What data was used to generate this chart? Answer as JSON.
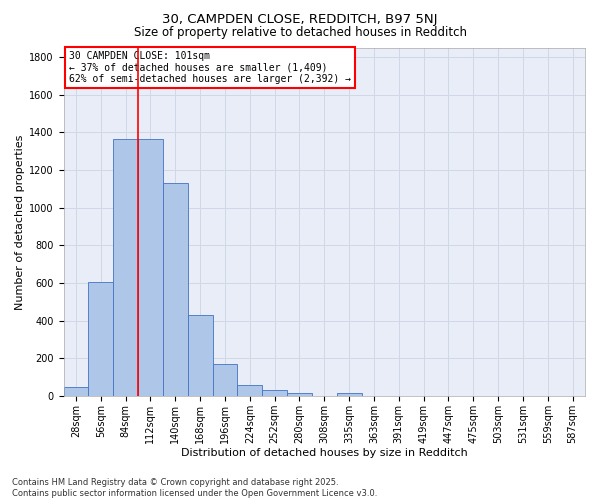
{
  "title_line1": "30, CAMPDEN CLOSE, REDDITCH, B97 5NJ",
  "title_line2": "Size of property relative to detached houses in Redditch",
  "xlabel": "Distribution of detached houses by size in Redditch",
  "ylabel": "Number of detached properties",
  "categories": [
    "28sqm",
    "56sqm",
    "84sqm",
    "112sqm",
    "140sqm",
    "168sqm",
    "196sqm",
    "224sqm",
    "252sqm",
    "280sqm",
    "308sqm",
    "335sqm",
    "363sqm",
    "391sqm",
    "419sqm",
    "447sqm",
    "475sqm",
    "503sqm",
    "531sqm",
    "559sqm",
    "587sqm"
  ],
  "values": [
    50,
    605,
    1365,
    1365,
    1130,
    430,
    170,
    60,
    35,
    15,
    0,
    15,
    0,
    0,
    0,
    0,
    0,
    0,
    0,
    0,
    0
  ],
  "bar_color": "#aec6e8",
  "bar_edge_color": "#4472c4",
  "vline_x": 2.5,
  "vline_color": "red",
  "annotation_text": "30 CAMPDEN CLOSE: 101sqm\n← 37% of detached houses are smaller (1,409)\n62% of semi-detached houses are larger (2,392) →",
  "annotation_box_color": "white",
  "annotation_box_edge_color": "red",
  "ylim": [
    0,
    1850
  ],
  "yticks": [
    0,
    200,
    400,
    600,
    800,
    1000,
    1200,
    1400,
    1600,
    1800
  ],
  "grid_color": "#d0d8e8",
  "background_color": "#e8edf8",
  "footer_line1": "Contains HM Land Registry data © Crown copyright and database right 2025.",
  "footer_line2": "Contains public sector information licensed under the Open Government Licence v3.0.",
  "title_fontsize": 9.5,
  "subtitle_fontsize": 8.5,
  "axis_label_fontsize": 8,
  "tick_fontsize": 7,
  "annotation_fontsize": 7,
  "footer_fontsize": 6
}
